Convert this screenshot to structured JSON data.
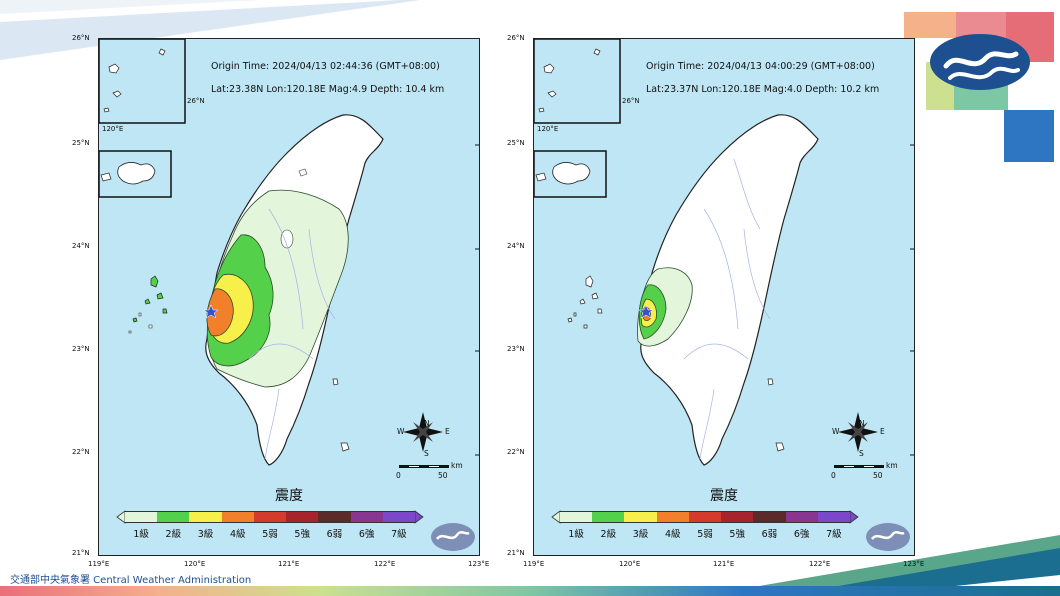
{
  "maps": [
    {
      "origin_time": "Origin Time:  2024/04/13  02:44:36  (GMT+08:00)",
      "location": "Lat:23.38N  Lon:120.18E  Mag:4.9  Depth: 10.4 km"
    },
    {
      "origin_time": "Origin Time:  2024/04/13  04:00:29  (GMT+08:00)",
      "location": "Lat:23.37N  Lon:120.18E  Mag:4.0  Depth: 10.2 km"
    }
  ],
  "legend": {
    "title": "震度",
    "levels": [
      "1級",
      "2級",
      "3級",
      "4級",
      "5弱",
      "5強",
      "6弱",
      "6強",
      "7級"
    ],
    "colors": [
      "#e3f6dc",
      "#55d04a",
      "#f7ef4a",
      "#f2802a",
      "#d43b2b",
      "#a7232d",
      "#5b2a2a",
      "#8a3590",
      "#7a48c9"
    ]
  },
  "axes": {
    "lat_labels": [
      "26°N",
      "25°N",
      "24°N",
      "23°N",
      "22°N",
      "21°N"
    ],
    "lon_labels": [
      "119°E",
      "120°E",
      "121°E",
      "122°E",
      "123°E"
    ],
    "inset_lat": "26°N",
    "inset_lon": "120°E"
  },
  "compass": {
    "n": "N",
    "s": "S",
    "e": "E",
    "w": "W"
  },
  "scale": {
    "zero": "0",
    "fifty": "50",
    "unit": "km"
  },
  "footer": {
    "agency": "交通部中央氣象署 Central Weather  Administration"
  },
  "colors": {
    "sea": "#bfe6f4",
    "land": "#ffffff",
    "brand_blue": "#1d4f91"
  }
}
